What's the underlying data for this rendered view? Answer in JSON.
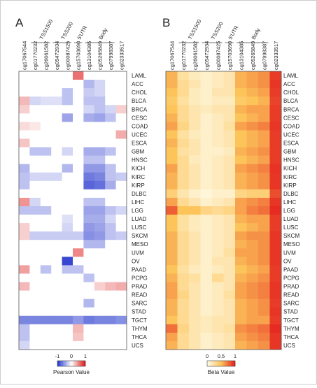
{
  "chart_data": [
    {
      "type": "heatmap",
      "panel_label": "A",
      "columns": [
        "cg17067544",
        "cg01770232",
        "cg26061582",
        "cg05472934",
        "cg00087425",
        "cg15703690",
        "cg13104385",
        "cg05265849",
        "cg07998387",
        "cg02333517"
      ],
      "column_groups": [
        {
          "name": "TSS1500",
          "from": 1,
          "to": 2
        },
        {
          "name": "TSS200",
          "from": 3,
          "to": 4
        },
        {
          "name": "5'UTR",
          "from": 5,
          "to": 5
        },
        {
          "name": "Body",
          "from": 6,
          "to": 8
        }
      ],
      "rows": [
        "LAML",
        "ACC",
        "CHOL",
        "BLCA",
        "BRCA",
        "CESC",
        "COAD",
        "UCEC",
        "ESCA",
        "GBM",
        "HNSC",
        "KICH",
        "KIRC",
        "KIRP",
        "DLBC",
        "LIHC",
        "LGG",
        "LUAD",
        "LUSC",
        "SKCM",
        "MESO",
        "UVM",
        "OV",
        "PAAD",
        "PCPG",
        "PRAD",
        "READ",
        "SARC",
        "STAD",
        "TGCT",
        "THYM",
        "THCA",
        "UCS"
      ],
      "values": [
        [
          0,
          0,
          0,
          0,
          0,
          0.6,
          0,
          0,
          0,
          0
        ],
        [
          0,
          0,
          0,
          0,
          0,
          0,
          -0.35,
          -0.2,
          0,
          0
        ],
        [
          0,
          0,
          0,
          0,
          -0.3,
          0,
          -0.25,
          -0.2,
          0,
          0
        ],
        [
          0.3,
          -0.2,
          -0.15,
          -0.15,
          -0.3,
          0,
          -0.3,
          -0.3,
          0,
          0
        ],
        [
          0.2,
          0,
          0,
          0,
          0,
          0,
          -0.2,
          -0.3,
          -0.2,
          0.2
        ],
        [
          0,
          0,
          0,
          0,
          -0.45,
          0,
          -0.4,
          -0.45,
          -0.3,
          0
        ],
        [
          0.15,
          0.1,
          0,
          0,
          0,
          0,
          0,
          0,
          0,
          0
        ],
        [
          0,
          0,
          0,
          0,
          0,
          0,
          0,
          0,
          0,
          0.35
        ],
        [
          0.25,
          0,
          0,
          0,
          0,
          0,
          0,
          0,
          0,
          0
        ],
        [
          0,
          -0.3,
          -0.3,
          0,
          -0.2,
          0,
          -0.4,
          -0.4,
          -0.3,
          0
        ],
        [
          0,
          0,
          0,
          0,
          0,
          0,
          -0.3,
          -0.3,
          0,
          0
        ],
        [
          -0.35,
          0,
          0,
          0,
          -0.35,
          0,
          -0.5,
          -0.5,
          -0.3,
          0
        ],
        [
          -0.3,
          -0.2,
          -0.2,
          -0.2,
          0,
          0,
          -0.65,
          -0.6,
          -0.3,
          -0.25
        ],
        [
          -0.3,
          0,
          0,
          0,
          0,
          0,
          -0.75,
          -0.7,
          -0.4,
          0
        ],
        [
          0,
          0,
          0,
          0,
          0,
          0,
          0,
          0,
          0,
          0
        ],
        [
          0.45,
          -0.2,
          0,
          0,
          0,
          0,
          -0.3,
          -0.3,
          0,
          0
        ],
        [
          -0.3,
          -0.3,
          -0.3,
          0,
          0,
          0,
          -0.45,
          -0.45,
          -0.3,
          -0.2
        ],
        [
          0,
          0,
          0,
          0,
          -0.15,
          0,
          -0.4,
          -0.4,
          -0.2,
          0
        ],
        [
          0.2,
          0,
          0,
          0,
          -0.2,
          0,
          -0.5,
          -0.45,
          -0.3,
          0
        ],
        [
          0.2,
          -0.25,
          -0.25,
          -0.25,
          -0.25,
          -0.25,
          -0.55,
          -0.5,
          -0.3,
          -0.25
        ],
        [
          0,
          0,
          0,
          0,
          0,
          0,
          -0.35,
          -0.35,
          0,
          0
        ],
        [
          0,
          0,
          0,
          0,
          0,
          0.5,
          0,
          0,
          0,
          0
        ],
        [
          0,
          0,
          0,
          0,
          -0.9,
          0,
          0,
          0,
          0,
          0
        ],
        [
          0.4,
          0,
          -0.3,
          0,
          -0.3,
          -0.3,
          0,
          0,
          0,
          0
        ],
        [
          0,
          0,
          0,
          0,
          0,
          0,
          -0.3,
          0,
          0,
          0
        ],
        [
          0.3,
          0,
          0,
          0,
          0,
          0,
          0,
          0.2,
          0.3,
          0.35
        ],
        [
          0,
          0,
          0,
          0,
          0,
          0,
          0,
          0,
          0,
          0
        ],
        [
          0,
          0,
          0,
          0,
          0,
          0,
          -0.35,
          0,
          0,
          0
        ],
        [
          0,
          0,
          0,
          0,
          0,
          0,
          0,
          0,
          0,
          0
        ],
        [
          -0.6,
          -0.6,
          -0.6,
          -0.6,
          -0.6,
          -0.5,
          -0.65,
          -0.6,
          -0.6,
          -0.55
        ],
        [
          -0.3,
          0,
          0,
          0,
          0,
          0.3,
          0,
          0,
          0,
          0
        ],
        [
          -0.3,
          0,
          0,
          0,
          0,
          0.25,
          0,
          0,
          0,
          0
        ],
        [
          -0.2,
          0,
          0,
          0,
          0,
          0,
          0,
          0,
          0,
          0
        ]
      ],
      "colorbar": {
        "label": "Pearson Value",
        "ticks": [
          "-1",
          "0",
          "1"
        ],
        "range": [
          -1,
          1
        ],
        "colors": {
          "low": "#2233cc",
          "mid": "#ffffff",
          "high": "#dd1111"
        }
      }
    },
    {
      "type": "heatmap",
      "panel_label": "B",
      "columns": [
        "cg17067544",
        "cg01770232",
        "cg26061582",
        "cg05472934",
        "cg00087425",
        "cg15703690",
        "cg13104385",
        "cg05265849",
        "cg07998387",
        "cg02333517"
      ],
      "column_groups": [
        {
          "name": "TSS1500",
          "from": 1,
          "to": 2
        },
        {
          "name": "TSS200",
          "from": 3,
          "to": 4
        },
        {
          "name": "5'UTR",
          "from": 5,
          "to": 5
        },
        {
          "name": "Body",
          "from": 6,
          "to": 8
        }
      ],
      "rows": [
        "LAML",
        "ACC",
        "CHOL",
        "BLCA",
        "BRCA",
        "CESC",
        "COAD",
        "UCEC",
        "ESCA",
        "GBM",
        "HNSC",
        "KICH",
        "KIRC",
        "KIRP",
        "DLBC",
        "LIHC",
        "LGG",
        "LUAD",
        "LUSC",
        "SKCM",
        "MESO",
        "UVM",
        "OV",
        "PAAD",
        "PCPG",
        "PRAD",
        "READ",
        "SARC",
        "STAD",
        "TGCT",
        "THYM",
        "THCA",
        "UCS"
      ],
      "values": [
        [
          0.55,
          0.25,
          0.15,
          0.1,
          0.15,
          0.2,
          0.55,
          0.6,
          0.65,
          0.9
        ],
        [
          0.55,
          0.3,
          0.2,
          0.1,
          0.15,
          0.2,
          0.55,
          0.6,
          0.65,
          0.92
        ],
        [
          0.5,
          0.3,
          0.15,
          0.1,
          0.2,
          0.2,
          0.5,
          0.55,
          0.6,
          0.9
        ],
        [
          0.45,
          0.25,
          0.15,
          0.1,
          0.15,
          0.15,
          0.45,
          0.5,
          0.55,
          0.88
        ],
        [
          0.5,
          0.3,
          0.2,
          0.15,
          0.2,
          0.2,
          0.55,
          0.6,
          0.6,
          0.9
        ],
        [
          0.55,
          0.3,
          0.2,
          0.1,
          0.15,
          0.2,
          0.5,
          0.55,
          0.6,
          0.9
        ],
        [
          0.6,
          0.35,
          0.2,
          0.1,
          0.15,
          0.25,
          0.6,
          0.65,
          0.7,
          0.92
        ],
        [
          0.5,
          0.25,
          0.15,
          0.1,
          0.15,
          0.2,
          0.5,
          0.55,
          0.6,
          0.9
        ],
        [
          0.55,
          0.3,
          0.2,
          0.1,
          0.15,
          0.2,
          0.5,
          0.55,
          0.6,
          0.9
        ],
        [
          0.5,
          0.25,
          0.2,
          0.1,
          0.1,
          0.15,
          0.55,
          0.6,
          0.65,
          0.9
        ],
        [
          0.5,
          0.3,
          0.15,
          0.1,
          0.15,
          0.2,
          0.5,
          0.55,
          0.6,
          0.9
        ],
        [
          0.6,
          0.3,
          0.2,
          0.1,
          0.15,
          0.2,
          0.6,
          0.65,
          0.7,
          0.93
        ],
        [
          0.55,
          0.3,
          0.2,
          0.1,
          0.15,
          0.2,
          0.55,
          0.6,
          0.65,
          0.92
        ],
        [
          0.55,
          0.3,
          0.2,
          0.1,
          0.15,
          0.2,
          0.55,
          0.6,
          0.65,
          0.92
        ],
        [
          0.4,
          0.2,
          0.1,
          0.05,
          0.1,
          0.1,
          0.35,
          0.4,
          0.4,
          0.85
        ],
        [
          0.6,
          0.3,
          0.2,
          0.1,
          0.15,
          0.2,
          0.6,
          0.65,
          0.7,
          0.92
        ],
        [
          0.8,
          0.5,
          0.5,
          0.35,
          0.3,
          0.35,
          0.6,
          0.7,
          0.75,
          0.95
        ],
        [
          0.5,
          0.25,
          0.15,
          0.1,
          0.15,
          0.2,
          0.55,
          0.6,
          0.6,
          0.9
        ],
        [
          0.5,
          0.25,
          0.15,
          0.1,
          0.15,
          0.2,
          0.5,
          0.55,
          0.6,
          0.9
        ],
        [
          0.55,
          0.3,
          0.2,
          0.1,
          0.15,
          0.2,
          0.6,
          0.65,
          0.65,
          0.92
        ],
        [
          0.55,
          0.3,
          0.2,
          0.1,
          0.15,
          0.2,
          0.55,
          0.6,
          0.65,
          0.92
        ],
        [
          0.55,
          0.3,
          0.2,
          0.1,
          0.15,
          0.25,
          0.6,
          0.6,
          0.65,
          0.92
        ],
        [
          0.55,
          0.3,
          0.2,
          0.1,
          0.2,
          0.2,
          0.55,
          0.6,
          0.65,
          0.92
        ],
        [
          0.5,
          0.25,
          0.15,
          0.1,
          0.15,
          0.2,
          0.5,
          0.55,
          0.6,
          0.9
        ],
        [
          0.55,
          0.3,
          0.25,
          0.1,
          0.3,
          0.2,
          0.55,
          0.6,
          0.65,
          0.9
        ],
        [
          0.6,
          0.3,
          0.2,
          0.1,
          0.15,
          0.2,
          0.6,
          0.65,
          0.7,
          0.92
        ],
        [
          0.6,
          0.35,
          0.2,
          0.1,
          0.15,
          0.25,
          0.6,
          0.65,
          0.7,
          0.92
        ],
        [
          0.55,
          0.3,
          0.2,
          0.1,
          0.15,
          0.2,
          0.55,
          0.6,
          0.65,
          0.9
        ],
        [
          0.55,
          0.3,
          0.2,
          0.1,
          0.15,
          0.2,
          0.55,
          0.6,
          0.65,
          0.92
        ],
        [
          0.5,
          0.3,
          0.2,
          0.15,
          0.2,
          0.2,
          0.55,
          0.6,
          0.6,
          0.9
        ],
        [
          0.75,
          0.35,
          0.2,
          0.15,
          0.2,
          0.25,
          0.65,
          0.7,
          0.75,
          0.95
        ],
        [
          0.6,
          0.3,
          0.2,
          0.1,
          0.15,
          0.2,
          0.6,
          0.65,
          0.7,
          0.92
        ],
        [
          0.55,
          0.3,
          0.2,
          0.1,
          0.15,
          0.2,
          0.55,
          0.6,
          0.65,
          0.92
        ]
      ],
      "colorbar": {
        "label": "Beta Value",
        "ticks": [
          "0",
          "0.5",
          "1"
        ],
        "range": [
          0,
          1
        ],
        "colors": {
          "low": "#fffbe8",
          "mid": "#fdc45a",
          "high": "#e31a1c"
        }
      }
    }
  ]
}
